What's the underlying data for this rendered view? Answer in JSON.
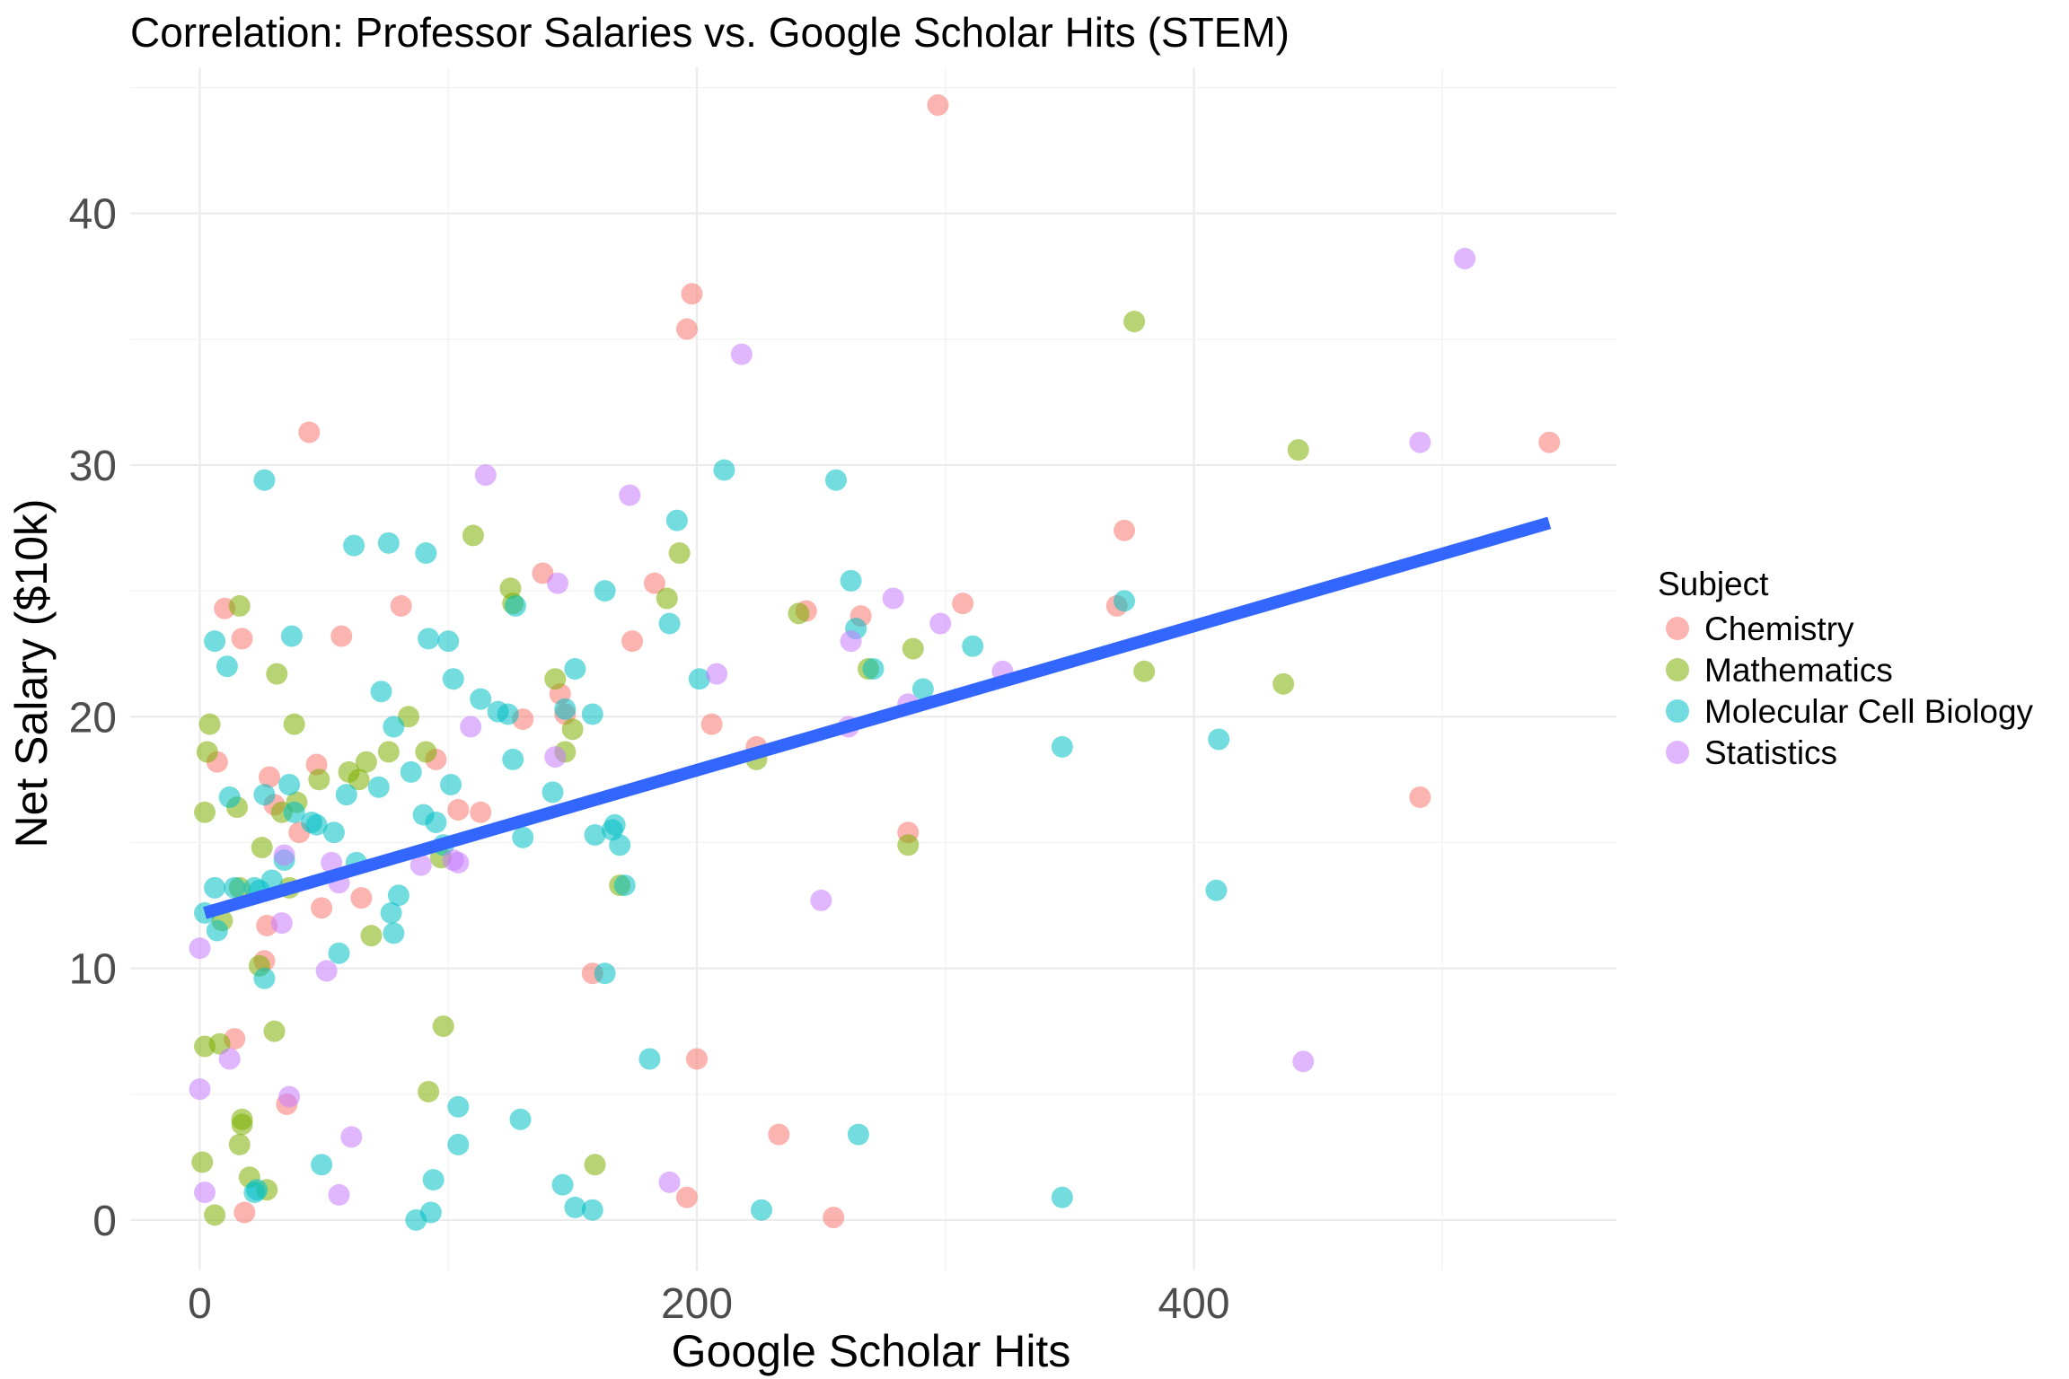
{
  "chart_data": {
    "type": "scatter",
    "title": "Correlation: Professor Salaries vs. Google Scholar Hits (STEM)",
    "xlabel": "Google Scholar Hits",
    "ylabel": "Net Salary ($10k)",
    "xlim": [
      -28,
      570
    ],
    "ylim": [
      -2,
      45.8
    ],
    "x_ticks": [
      0,
      200,
      400
    ],
    "x_tick_labels": [
      "0",
      "200",
      "400"
    ],
    "y_ticks": [
      0,
      10,
      20,
      30,
      40
    ],
    "y_tick_labels": [
      "0",
      "10",
      "20",
      "30",
      "40"
    ],
    "grid": true,
    "legend": {
      "title": "Subject",
      "position": "right"
    },
    "trend_line": {
      "x": [
        2,
        543
      ],
      "y": [
        12.2,
        27.7
      ],
      "color": "#3366ff"
    },
    "series": [
      {
        "name": "Chemistry",
        "color": "#f8766d",
        "x": [
          297,
          198,
          196,
          44,
          372,
          543,
          491,
          138,
          183,
          244,
          266,
          307,
          10,
          17,
          81,
          57,
          7,
          28,
          145,
          147,
          104,
          95,
          130,
          47,
          113,
          40,
          27,
          65,
          26,
          30,
          49,
          14,
          158,
          206,
          200,
          233,
          196,
          255,
          35,
          18,
          285,
          369,
          224,
          174
        ],
        "y": [
          44.3,
          36.8,
          35.4,
          31.3,
          27.4,
          30.9,
          16.8,
          25.7,
          25.3,
          24.2,
          24.0,
          24.5,
          24.3,
          23.1,
          24.4,
          23.2,
          18.2,
          17.6,
          20.9,
          20.1,
          16.3,
          18.3,
          19.9,
          18.1,
          16.2,
          15.4,
          11.7,
          12.8,
          10.3,
          16.5,
          12.4,
          7.2,
          9.8,
          19.7,
          6.4,
          3.4,
          0.9,
          0.1,
          4.6,
          0.3,
          15.4,
          24.4,
          18.8,
          23.0
        ]
      },
      {
        "name": "Mathematics",
        "color": "#7cae00",
        "x": [
          376,
          442,
          380,
          436,
          110,
          193,
          188,
          125,
          126,
          16,
          31,
          4,
          38,
          2,
          3,
          9,
          15,
          25,
          33,
          39,
          48,
          60,
          64,
          67,
          76,
          84,
          91,
          143,
          147,
          150,
          224,
          241,
          285,
          287,
          269,
          169,
          97,
          92,
          98,
          16,
          36,
          30,
          24,
          8,
          1,
          17,
          17,
          20,
          27,
          6,
          159,
          2,
          69,
          16
        ],
        "y": [
          35.7,
          30.6,
          21.8,
          21.3,
          27.2,
          26.5,
          24.7,
          25.1,
          24.5,
          24.4,
          21.7,
          19.7,
          19.7,
          16.2,
          18.6,
          11.9,
          16.4,
          14.8,
          16.2,
          16.6,
          17.5,
          17.8,
          17.5,
          18.2,
          18.6,
          20.0,
          18.6,
          21.5,
          18.6,
          19.5,
          18.3,
          24.1,
          14.9,
          22.7,
          21.9,
          13.3,
          14.4,
          5.1,
          7.7,
          13.2,
          13.2,
          7.5,
          10.1,
          7.0,
          2.3,
          4.0,
          3.8,
          1.7,
          1.2,
          0.2,
          2.2,
          6.9,
          11.3,
          3.0
        ]
      },
      {
        "name": "Molecular Cell Biology",
        "color": "#00bfc4",
        "x": [
          26,
          62,
          76,
          91,
          92,
          100,
          102,
          127,
          163,
          166,
          192,
          211,
          256,
          262,
          189,
          201,
          264,
          271,
          291,
          311,
          372,
          6,
          11,
          12,
          26,
          36,
          37,
          47,
          56,
          59,
          72,
          73,
          78,
          85,
          98,
          101,
          113,
          120,
          124,
          126,
          130,
          142,
          147,
          151,
          158,
          159,
          167,
          169,
          171,
          2,
          6,
          7,
          14,
          22,
          24,
          26,
          29,
          34,
          38,
          45,
          54,
          63,
          77,
          78,
          80,
          90,
          95,
          163,
          181,
          409,
          410,
          347,
          347,
          265,
          226,
          158,
          151,
          146,
          129,
          104,
          104,
          94,
          93,
          87,
          49,
          23,
          22
        ],
        "y": [
          29.4,
          26.8,
          26.9,
          26.5,
          23.1,
          23.0,
          21.5,
          24.4,
          25.0,
          15.5,
          27.8,
          29.8,
          29.4,
          25.4,
          23.7,
          21.5,
          23.5,
          21.9,
          21.1,
          22.8,
          24.6,
          23.0,
          22.0,
          16.8,
          16.9,
          17.3,
          23.2,
          15.7,
          10.6,
          16.9,
          17.2,
          21.0,
          19.6,
          17.8,
          14.9,
          17.3,
          20.7,
          20.2,
          20.1,
          18.3,
          15.2,
          17.0,
          20.3,
          21.9,
          20.1,
          15.3,
          15.7,
          14.9,
          13.3,
          12.2,
          13.2,
          11.5,
          13.2,
          13.2,
          13.1,
          9.6,
          13.5,
          14.3,
          16.2,
          15.8,
          15.4,
          14.2,
          12.2,
          11.4,
          12.9,
          16.1,
          15.8,
          9.8,
          6.4,
          13.1,
          19.1,
          18.8,
          0.9,
          3.4,
          0.4,
          0.4,
          0.5,
          1.4,
          4.0,
          4.5,
          3.0,
          1.6,
          0.3,
          0.0,
          2.2,
          1.2,
          1.1
        ]
      },
      {
        "name": "Statistics",
        "color": "#c77cff",
        "x": [
          509,
          491,
          218,
          115,
          173,
          279,
          298,
          208,
          262,
          323,
          285,
          261,
          250,
          144,
          143,
          109,
          104,
          89,
          53,
          56,
          34,
          0,
          12,
          36,
          51,
          61,
          56,
          0,
          2,
          189,
          444,
          33,
          102
        ],
        "y": [
          38.2,
          30.9,
          34.4,
          29.6,
          28.8,
          24.7,
          23.7,
          21.7,
          23.0,
          21.8,
          20.5,
          19.6,
          12.7,
          25.3,
          18.4,
          19.6,
          14.2,
          14.1,
          14.2,
          13.4,
          14.5,
          10.8,
          6.4,
          4.9,
          9.9,
          3.3,
          1.0,
          5.2,
          1.1,
          1.5,
          6.3,
          11.8,
          14.3
        ]
      }
    ]
  }
}
